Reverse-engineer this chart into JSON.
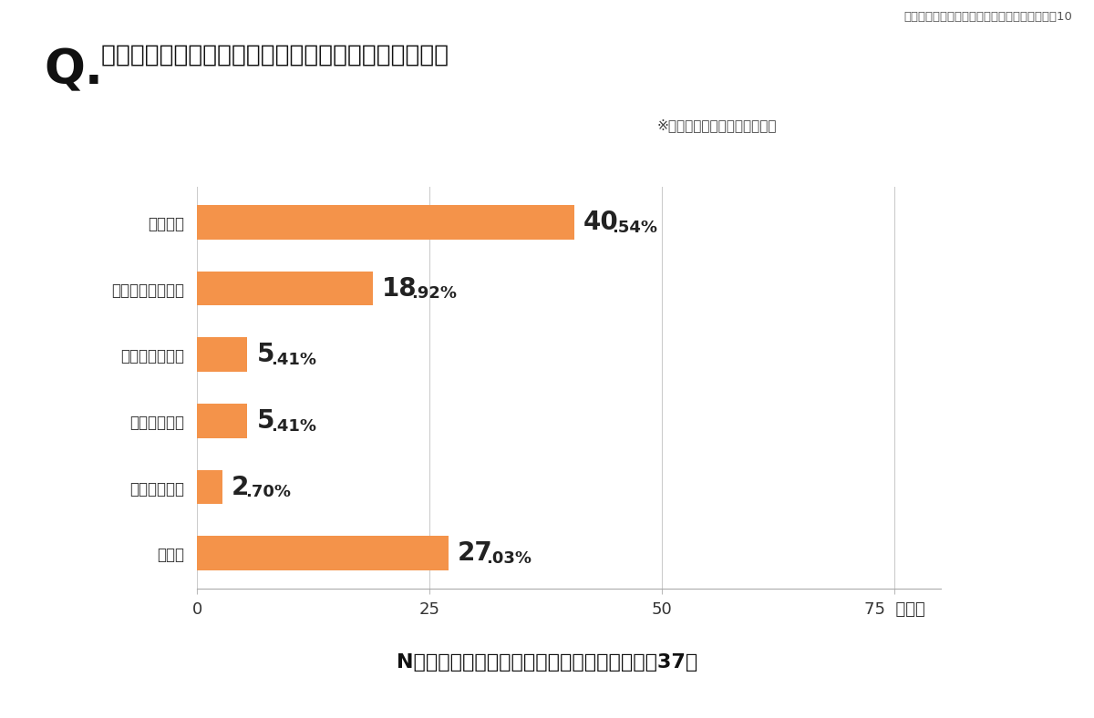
{
  "title_q": "Q.",
  "title_text": " どんなものを贈る予定か、具体的に教えてください。",
  "subtitle": "※記述回答を分類分けして集計",
  "header_right": "バレンタインに関する保護者の実態調査｜資料10",
  "categories": [
    "クッキー",
    "型で固めたチョコ",
    "生チョコレート",
    "カップケーキ",
    "決めていない",
    "その他"
  ],
  "values": [
    40.54,
    18.92,
    5.41,
    5.41,
    2.7,
    27.03
  ],
  "labels_big": [
    "40",
    "18",
    "5",
    "5",
    "2",
    "27"
  ],
  "labels_small": [
    ".54%",
    ".92%",
    ".41%",
    ".41%",
    ".70%",
    ".03%"
  ],
  "bar_color": "#F4934A",
  "background_color": "#ffffff",
  "xlim": [
    0,
    80
  ],
  "xticks": [
    0,
    25,
    50,
    75
  ],
  "footer": "N＝手作りのチョコ（お菓子）を贈ると答えた37人"
}
